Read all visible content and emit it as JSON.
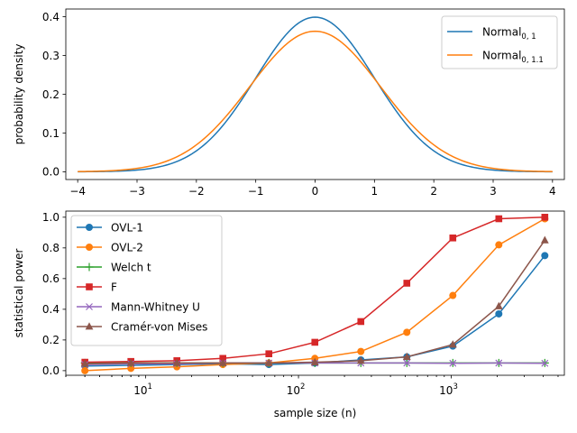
{
  "chart_data": [
    {
      "type": "line",
      "title": "",
      "xlabel": "",
      "ylabel": "probability density",
      "xlim": [
        -4.2,
        4.2
      ],
      "ylim": [
        -0.02,
        0.42
      ],
      "xticks": [
        -4,
        -3,
        -2,
        -1,
        0,
        1,
        2,
        3,
        4
      ],
      "yticks": [
        0.0,
        0.1,
        0.2,
        0.3,
        0.4
      ],
      "legend_position": "top-right",
      "series": [
        {
          "name": "Normal",
          "subscript": "0, 1",
          "color": "#1f77b4",
          "mean": 0,
          "sd": 1.0,
          "x": [
            -4,
            -3.5,
            -3,
            -2.5,
            -2,
            -1.5,
            -1,
            -0.5,
            0,
            0.5,
            1,
            1.5,
            2,
            2.5,
            3,
            3.5,
            4
          ],
          "values": [
            0.0001,
            0.0009,
            0.0044,
            0.0175,
            0.054,
            0.1295,
            0.242,
            0.3521,
            0.3989,
            0.3521,
            0.242,
            0.1295,
            0.054,
            0.0175,
            0.0044,
            0.0009,
            0.0001
          ]
        },
        {
          "name": "Normal",
          "subscript": "0, 1.1",
          "color": "#ff7f0e",
          "mean": 0,
          "sd": 1.1,
          "x": [
            -4,
            -3.5,
            -3,
            -2.5,
            -2,
            -1.5,
            -1,
            -0.5,
            0,
            0.5,
            1,
            1.5,
            2,
            2.5,
            3,
            3.5,
            4
          ],
          "values": [
            0.0005,
            0.0023,
            0.0089,
            0.0275,
            0.0694,
            0.1432,
            0.2399,
            0.3271,
            0.3627,
            0.3271,
            0.2399,
            0.1432,
            0.0694,
            0.0275,
            0.0089,
            0.0023,
            0.0005
          ]
        }
      ]
    },
    {
      "type": "line",
      "title": "",
      "xlabel": "sample size (n)",
      "ylabel": "statistical power",
      "xscale": "log",
      "xlim": [
        3,
        5500
      ],
      "ylim": [
        -0.03,
        1.04
      ],
      "xticks": [
        10,
        100,
        1000
      ],
      "xtick_labels": [
        {
          "base": "10",
          "exp": "1"
        },
        {
          "base": "10",
          "exp": "2"
        },
        {
          "base": "10",
          "exp": "3"
        }
      ],
      "yticks": [
        0.0,
        0.2,
        0.4,
        0.6,
        0.8,
        1.0
      ],
      "legend_position": "top-left",
      "x": [
        4,
        8,
        16,
        32,
        64,
        128,
        256,
        512,
        1024,
        2048,
        4096
      ],
      "series": [
        {
          "name": "OVL-1",
          "color": "#1f77b4",
          "marker": "circle",
          "values": [
            0.03,
            0.035,
            0.04,
            0.045,
            0.04,
            0.05,
            0.07,
            0.09,
            0.16,
            0.37,
            0.75
          ]
        },
        {
          "name": "OVL-2",
          "color": "#ff7f0e",
          "marker": "circle",
          "values": [
            0.0,
            0.015,
            0.025,
            0.04,
            0.05,
            0.08,
            0.125,
            0.25,
            0.49,
            0.82,
            0.99
          ]
        },
        {
          "name": "Welch t",
          "color": "#2ca02c",
          "marker": "plus",
          "values": [
            0.05,
            0.05,
            0.05,
            0.05,
            0.05,
            0.05,
            0.05,
            0.05,
            0.05,
            0.05,
            0.05
          ]
        },
        {
          "name": "F",
          "color": "#d62728",
          "marker": "square",
          "values": [
            0.055,
            0.06,
            0.065,
            0.08,
            0.11,
            0.185,
            0.32,
            0.57,
            0.865,
            0.99,
            1.0
          ]
        },
        {
          "name": "Mann-Whitney U",
          "color": "#9467bd",
          "marker": "x",
          "values": [
            0.04,
            0.045,
            0.045,
            0.05,
            0.05,
            0.05,
            0.05,
            0.05,
            0.048,
            0.05,
            0.048
          ]
        },
        {
          "name": "Cramér-von Mises",
          "color": "#8c564b",
          "marker": "triangle",
          "values": [
            0.045,
            0.05,
            0.05,
            0.05,
            0.05,
            0.055,
            0.065,
            0.09,
            0.17,
            0.42,
            0.85
          ]
        }
      ]
    }
  ]
}
